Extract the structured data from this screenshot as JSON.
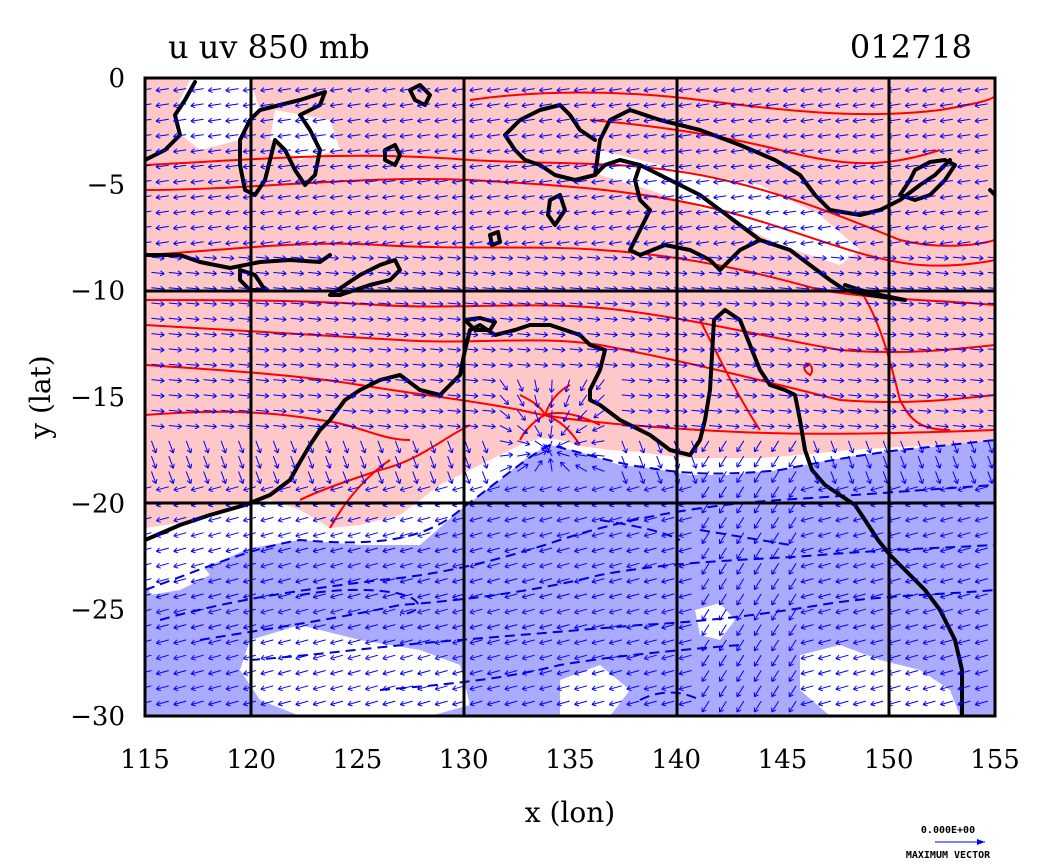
{
  "title_left": "u uv 850 mb",
  "title_right": "012718",
  "xlabel": "x (lon)",
  "ylabel": "y (lat)",
  "legend": {
    "value": "0.000E+00",
    "caption": "MAXIMUM VECTOR"
  },
  "colors": {
    "positive_fill": "#ffc8c8",
    "positive_contour": "#ff0000",
    "negative_fill": "#aaaaff",
    "negative_contour": "#0000dd",
    "vector": "#0000ff",
    "coast": "#000000",
    "grid": "#000000"
  },
  "chart_data": {
    "type": "map",
    "variable": "u, uv",
    "level": "850 mb",
    "x_range": [
      115,
      155
    ],
    "y_range": [
      -30,
      0
    ],
    "xticks": [
      115,
      120,
      125,
      130,
      135,
      140,
      145,
      150,
      155
    ],
    "yticks": [
      0,
      -5,
      -10,
      -15,
      -20,
      -25,
      -30
    ],
    "xtick_labels": [
      "115",
      "120",
      "125",
      "130",
      "135",
      "140",
      "145",
      "150",
      "155"
    ],
    "ytick_labels": [
      "0",
      "−5",
      "−10",
      "−15",
      "−20",
      "−25",
      "−30"
    ],
    "grid_x": [
      120,
      130,
      140,
      150
    ],
    "grid_y": [
      -10,
      -20
    ],
    "positive_u_region_lat": [
      -20,
      0
    ],
    "negative_u_region_lat": [
      -30,
      -18
    ]
  }
}
